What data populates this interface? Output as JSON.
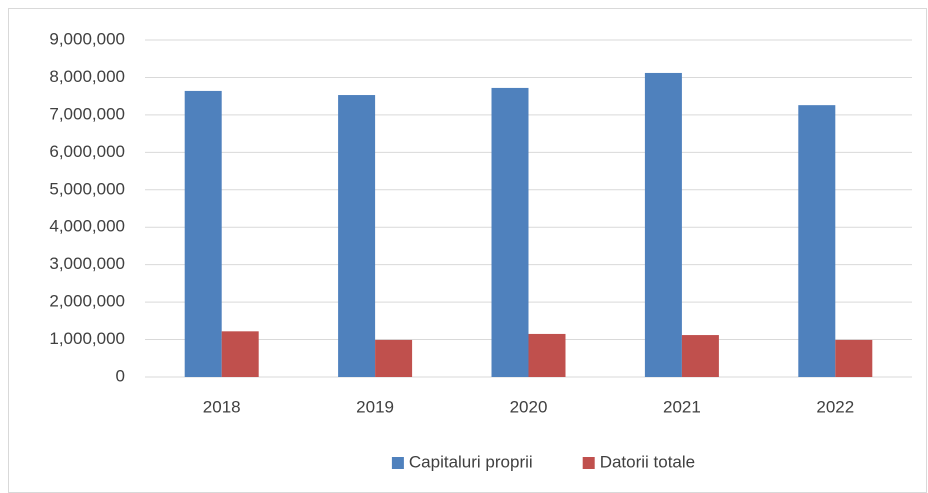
{
  "chart_data": {
    "type": "bar",
    "categories": [
      "2018",
      "2019",
      "2020",
      "2021",
      "2022"
    ],
    "series": [
      {
        "name": "Capitaluri proprii",
        "color": "#4f81bd",
        "values": [
          7640000,
          7530000,
          7720000,
          8120000,
          7260000
        ]
      },
      {
        "name": "Datorii totale",
        "color": "#c0504d",
        "values": [
          1220000,
          990000,
          1150000,
          1120000,
          990000
        ]
      }
    ],
    "ylim": [
      0,
      9000000
    ],
    "yticks": [
      0,
      {
        "value": 1000000,
        "label": "1,000,000"
      },
      {
        "value": 2000000,
        "label": "2,000,000"
      },
      {
        "value": 3000000,
        "label": "3,000,000"
      },
      {
        "value": 4000000,
        "label": "4,000,000"
      },
      {
        "value": 5000000,
        "label": "5,000,000"
      },
      {
        "value": 6000000,
        "label": "6,000,000"
      },
      {
        "value": 7000000,
        "label": "7,000,000"
      },
      {
        "value": 8000000,
        "label": "8,000,000"
      },
      {
        "value": 9000000,
        "label": "9,000,000"
      }
    ],
    "grid": true,
    "legend": "bottom"
  }
}
